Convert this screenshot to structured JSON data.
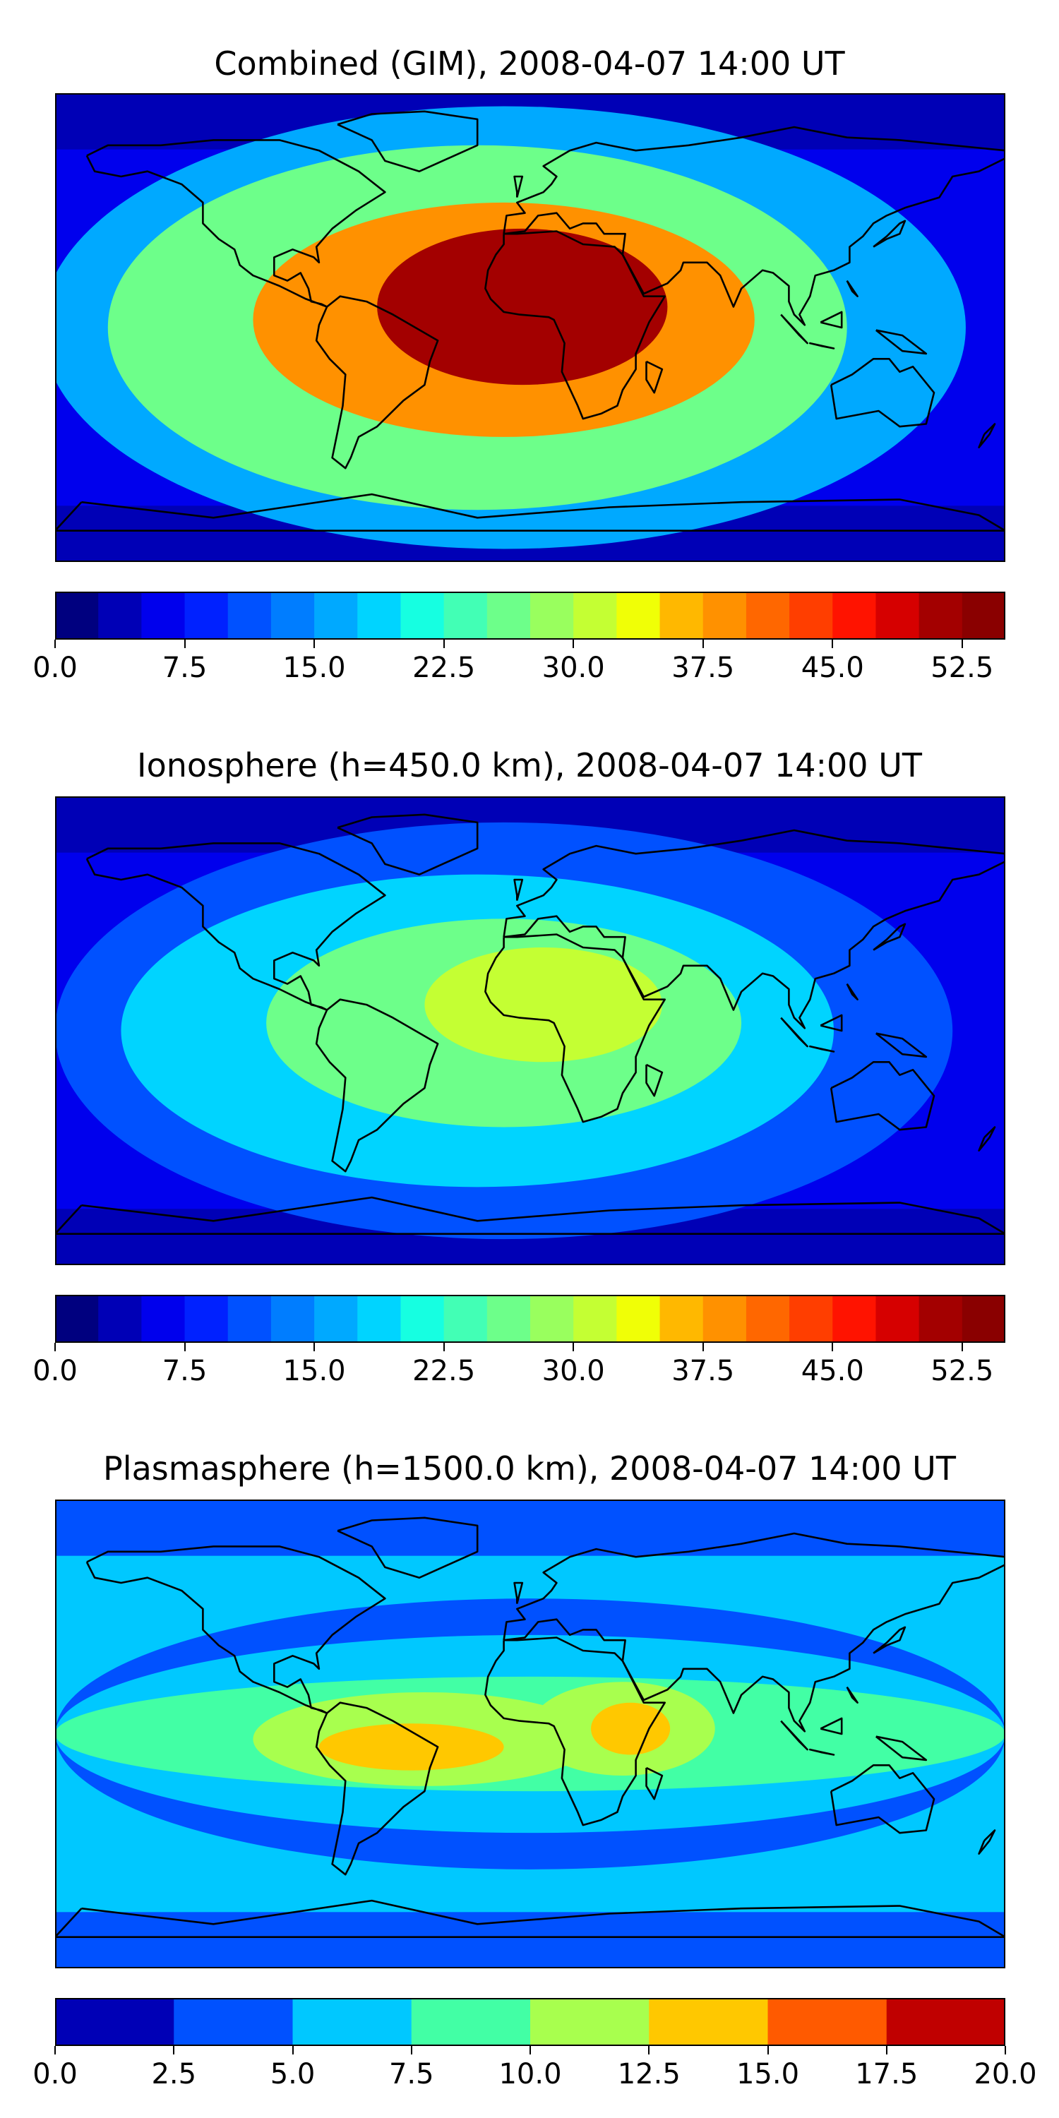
{
  "panels": [
    {
      "title": "Combined (GIM), 2008-04-07 14:00 UT",
      "colorbar": {
        "ticks": [
          "0.0",
          "7.5",
          "15.0",
          "22.5",
          "30.0",
          "37.5",
          "45.0",
          "52.5"
        ],
        "levels": [
          "#00007f",
          "#0000b6",
          "#0000ed",
          "#0021ff",
          "#0051ff",
          "#007dff",
          "#00a9ff",
          "#00d4ff",
          "#16ffe1",
          "#42ffb5",
          "#6dff8a",
          "#99ff5e",
          "#c4ff33",
          "#f0ff06",
          "#ffb800",
          "#ff9100",
          "#ff6700",
          "#ff3e00",
          "#ff1300",
          "#d60000",
          "#a30000",
          "#8a0000"
        ]
      },
      "hotspots": [
        {
          "lon": -3,
          "lat": 8,
          "rlon": 55,
          "rlat": 30,
          "level": 20
        },
        {
          "lon": -10,
          "lat": 3,
          "rlon": 95,
          "rlat": 45,
          "level": 15
        },
        {
          "lon": -20,
          "lat": 0,
          "rlon": 140,
          "rlat": 70,
          "level": 10
        },
        {
          "lon": -10,
          "lat": 0,
          "rlon": 175,
          "rlat": 85,
          "level": 6
        }
      ]
    },
    {
      "title": "Ionosphere  (h=450.0 km), 2008-04-07 14:00 UT",
      "colorbar": {
        "ticks": [
          "0.0",
          "7.5",
          "15.0",
          "22.5",
          "30.0",
          "37.5",
          "45.0",
          "52.5"
        ],
        "levels": [
          "#00007f",
          "#0000b6",
          "#0000ed",
          "#0021ff",
          "#0051ff",
          "#007dff",
          "#00a9ff",
          "#00d4ff",
          "#16ffe1",
          "#42ffb5",
          "#6dff8a",
          "#99ff5e",
          "#c4ff33",
          "#f0ff06",
          "#ffb800",
          "#ff9100",
          "#ff6700",
          "#ff3e00",
          "#ff1300",
          "#d60000",
          "#a30000",
          "#8a0000"
        ]
      },
      "hotspots": [
        {
          "lon": 5,
          "lat": 10,
          "rlon": 45,
          "rlat": 22,
          "level": 12
        },
        {
          "lon": -10,
          "lat": 3,
          "rlon": 90,
          "rlat": 40,
          "level": 10
        },
        {
          "lon": -20,
          "lat": 0,
          "rlon": 135,
          "rlat": 60,
          "level": 7
        },
        {
          "lon": -10,
          "lat": 0,
          "rlon": 170,
          "rlat": 80,
          "level": 4
        }
      ]
    },
    {
      "title": "Plasmasphere (h=1500.0 km), 2008-04-07 14:00 UT",
      "colorbar": {
        "ticks": [
          "0.0",
          "2.5",
          "5.0",
          "7.5",
          "10.0",
          "12.5",
          "15.0",
          "17.5",
          "20.0"
        ],
        "levels": [
          "#0000b6",
          "#0051ff",
          "#00c8ff",
          "#42ffa5",
          "#a8ff4e",
          "#ffc800",
          "#ff5a00",
          "#c00000"
        ]
      },
      "hotspots": [
        {
          "lon": -45,
          "lat": -5,
          "rlon": 35,
          "rlat": 9,
          "level": 5
        },
        {
          "lon": 38,
          "lat": 2,
          "rlon": 15,
          "rlat": 10,
          "level": 5
        },
        {
          "lon": -40,
          "lat": -2,
          "rlon": 65,
          "rlat": 18,
          "level": 4
        },
        {
          "lon": 35,
          "lat": 2,
          "rlon": 35,
          "rlat": 18,
          "level": 4
        },
        {
          "lon": 0,
          "lat": 0,
          "rlon": 180,
          "rlat": 22,
          "level": 3
        },
        {
          "lon": 0,
          "lat": 0,
          "rlon": 180,
          "rlat": 38,
          "level": 2
        },
        {
          "lon": 0,
          "lat": 0,
          "rlon": 180,
          "rlat": 52,
          "level": 1
        }
      ]
    }
  ]
}
